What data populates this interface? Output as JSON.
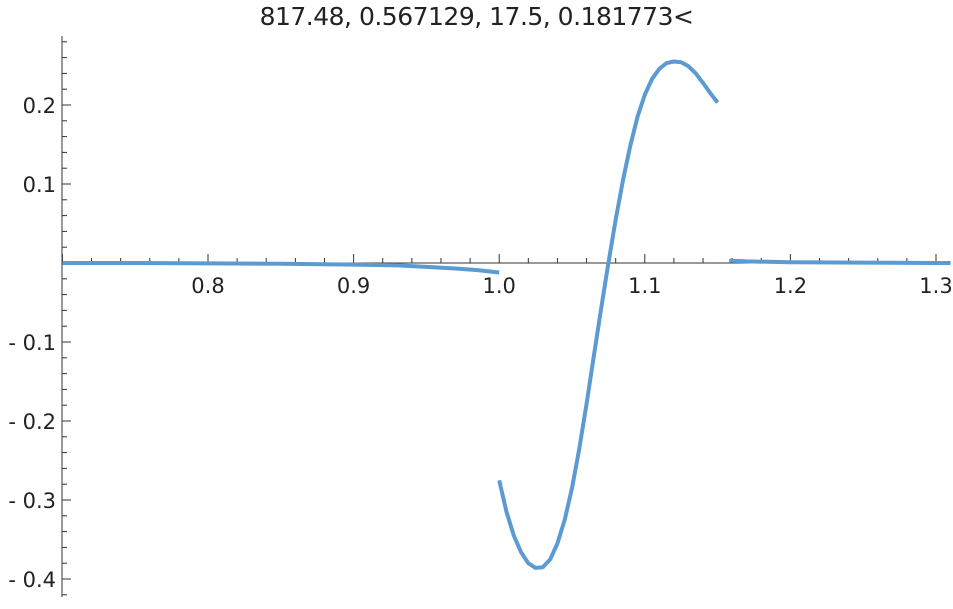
{
  "chart_data": {
    "type": "line",
    "title": "817.48, 0.567129, 17.5, 0.181773<",
    "xlabel": "",
    "ylabel": "",
    "xlim": [
      0.7,
      1.31
    ],
    "ylim": [
      -0.42,
      0.29
    ],
    "x_ticks": [
      0.8,
      0.9,
      1.0,
      1.1,
      1.2,
      1.3
    ],
    "x_tick_labels": [
      "0.8",
      "0.9",
      "1.0",
      "1.1",
      "1.2",
      "1.3"
    ],
    "y_ticks": [
      0.2,
      0.1,
      -0.1,
      -0.2,
      -0.3,
      -0.4
    ],
    "y_tick_labels": [
      "0.2",
      "0.1",
      "- 0.1",
      "- 0.2",
      "- 0.3",
      "- 0.4"
    ],
    "grid": false,
    "legend": "none",
    "line_color": "#5b9bd1",
    "series": [
      {
        "x": [
          0.7,
          0.75,
          0.8,
          0.85,
          0.9,
          0.93,
          0.95,
          0.97,
          0.985,
          1.0
        ],
        "y": [
          0.0,
          0.0,
          -0.0005,
          -0.001,
          -0.002,
          -0.003,
          -0.005,
          -0.007,
          -0.009,
          -0.012
        ]
      },
      {
        "x": [
          1.0,
          1.005,
          1.01,
          1.015,
          1.02,
          1.025,
          1.03,
          1.035,
          1.04,
          1.045,
          1.05,
          1.055,
          1.06,
          1.065,
          1.07,
          1.075,
          1.08,
          1.085,
          1.09,
          1.095,
          1.1,
          1.105,
          1.11,
          1.115,
          1.12,
          1.125,
          1.13,
          1.135,
          1.14,
          1.145,
          1.15
        ],
        "y": [
          -0.275,
          -0.315,
          -0.345,
          -0.366,
          -0.38,
          -0.386,
          -0.385,
          -0.375,
          -0.355,
          -0.325,
          -0.285,
          -0.235,
          -0.178,
          -0.118,
          -0.058,
          0.0,
          0.055,
          0.105,
          0.148,
          0.185,
          0.213,
          0.233,
          0.246,
          0.253,
          0.255,
          0.254,
          0.249,
          0.24,
          0.228,
          0.215,
          0.203
        ]
      },
      {
        "x": [
          1.158,
          1.17,
          1.2,
          1.25,
          1.3,
          1.31
        ],
        "y": [
          0.003,
          0.002,
          0.001,
          0.0005,
          0.0,
          0.0
        ]
      }
    ]
  }
}
